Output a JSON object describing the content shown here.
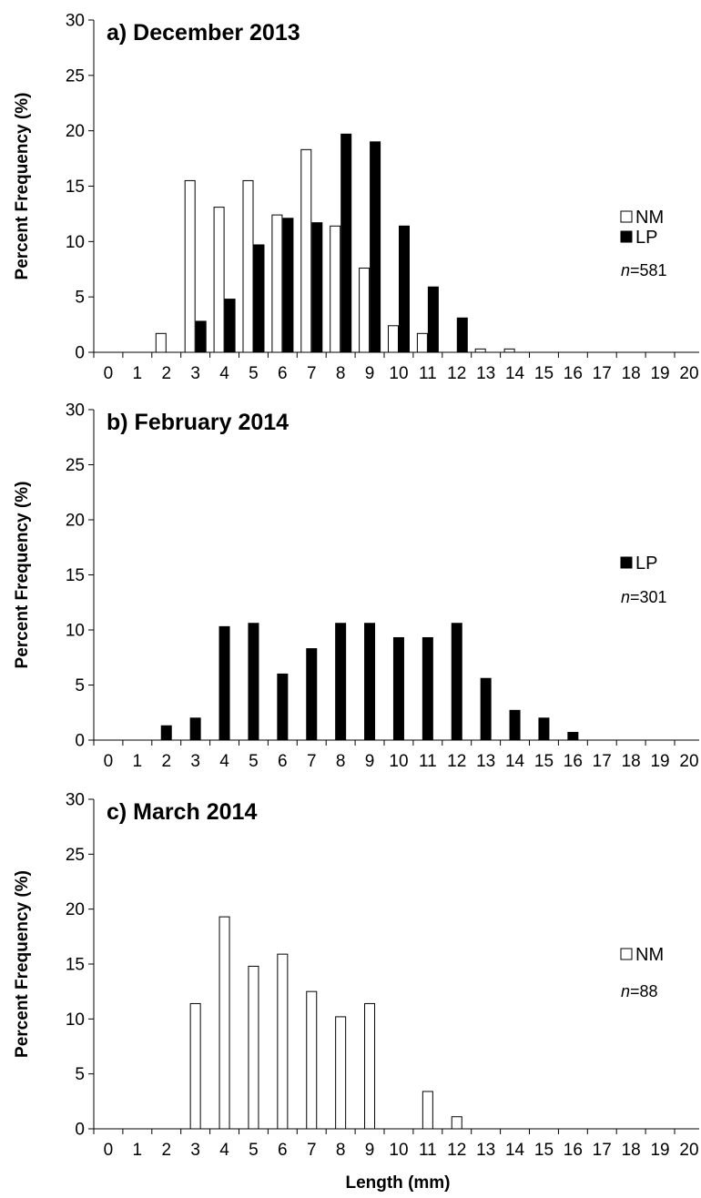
{
  "chart_data": [
    {
      "type": "bar",
      "title": "a) December 2013",
      "ylabel": "Percent Frequency (%)",
      "xlabel": "",
      "categories": [
        "0",
        "1",
        "2",
        "3",
        "4",
        "5",
        "6",
        "7",
        "8",
        "9",
        "10",
        "11",
        "12",
        "13",
        "14",
        "15",
        "16",
        "17",
        "18",
        "19",
        "20"
      ],
      "ylim": [
        0,
        30
      ],
      "yticks": [
        0,
        5,
        10,
        15,
        20,
        25,
        30
      ],
      "legend_position": "right",
      "sample_size": "581",
      "series": [
        {
          "name": "NM",
          "fill": "#ffffff",
          "values": [
            0,
            0,
            1.7,
            15.5,
            13.1,
            15.5,
            12.4,
            18.3,
            11.4,
            7.6,
            2.4,
            1.7,
            0,
            0.3,
            0.3,
            0,
            0,
            0,
            0,
            0,
            0
          ]
        },
        {
          "name": "LP",
          "fill": "#000000",
          "values": [
            0,
            0,
            0,
            2.8,
            4.8,
            9.7,
            12.1,
            11.7,
            19.7,
            19.0,
            11.4,
            5.9,
            3.1,
            0,
            0,
            0,
            0,
            0,
            0,
            0,
            0
          ]
        }
      ]
    },
    {
      "type": "bar",
      "title": "b) February 2014",
      "ylabel": "Percent Frequency (%)",
      "xlabel": "",
      "categories": [
        "0",
        "1",
        "2",
        "3",
        "4",
        "5",
        "6",
        "7",
        "8",
        "9",
        "10",
        "11",
        "12",
        "13",
        "14",
        "15",
        "16",
        "17",
        "18",
        "19",
        "20"
      ],
      "ylim": [
        0,
        30
      ],
      "yticks": [
        0,
        5,
        10,
        15,
        20,
        25,
        30
      ],
      "legend_position": "right",
      "sample_size": "301",
      "series": [
        {
          "name": "LP",
          "fill": "#000000",
          "values": [
            0,
            0,
            1.3,
            2.0,
            10.3,
            10.6,
            6.0,
            8.3,
            10.6,
            10.6,
            9.3,
            9.3,
            10.6,
            5.6,
            2.7,
            2.0,
            0.7,
            0,
            0,
            0,
            0
          ]
        }
      ]
    },
    {
      "type": "bar",
      "title": "c) March 2014",
      "ylabel": "Percent Frequency (%)",
      "xlabel": "Length (mm)",
      "categories": [
        "0",
        "1",
        "2",
        "3",
        "4",
        "5",
        "6",
        "7",
        "8",
        "9",
        "10",
        "11",
        "12",
        "13",
        "14",
        "15",
        "16",
        "17",
        "18",
        "19",
        "20"
      ],
      "ylim": [
        0,
        30
      ],
      "yticks": [
        0,
        5,
        10,
        15,
        20,
        25,
        30
      ],
      "legend_position": "right",
      "sample_size": "88",
      "series": [
        {
          "name": "NM",
          "fill": "#ffffff",
          "values": [
            0,
            0,
            0,
            11.4,
            19.3,
            14.8,
            15.9,
            12.5,
            10.2,
            11.4,
            0,
            3.4,
            1.1,
            0,
            0,
            0,
            0,
            0,
            0,
            0,
            0
          ]
        }
      ]
    }
  ]
}
